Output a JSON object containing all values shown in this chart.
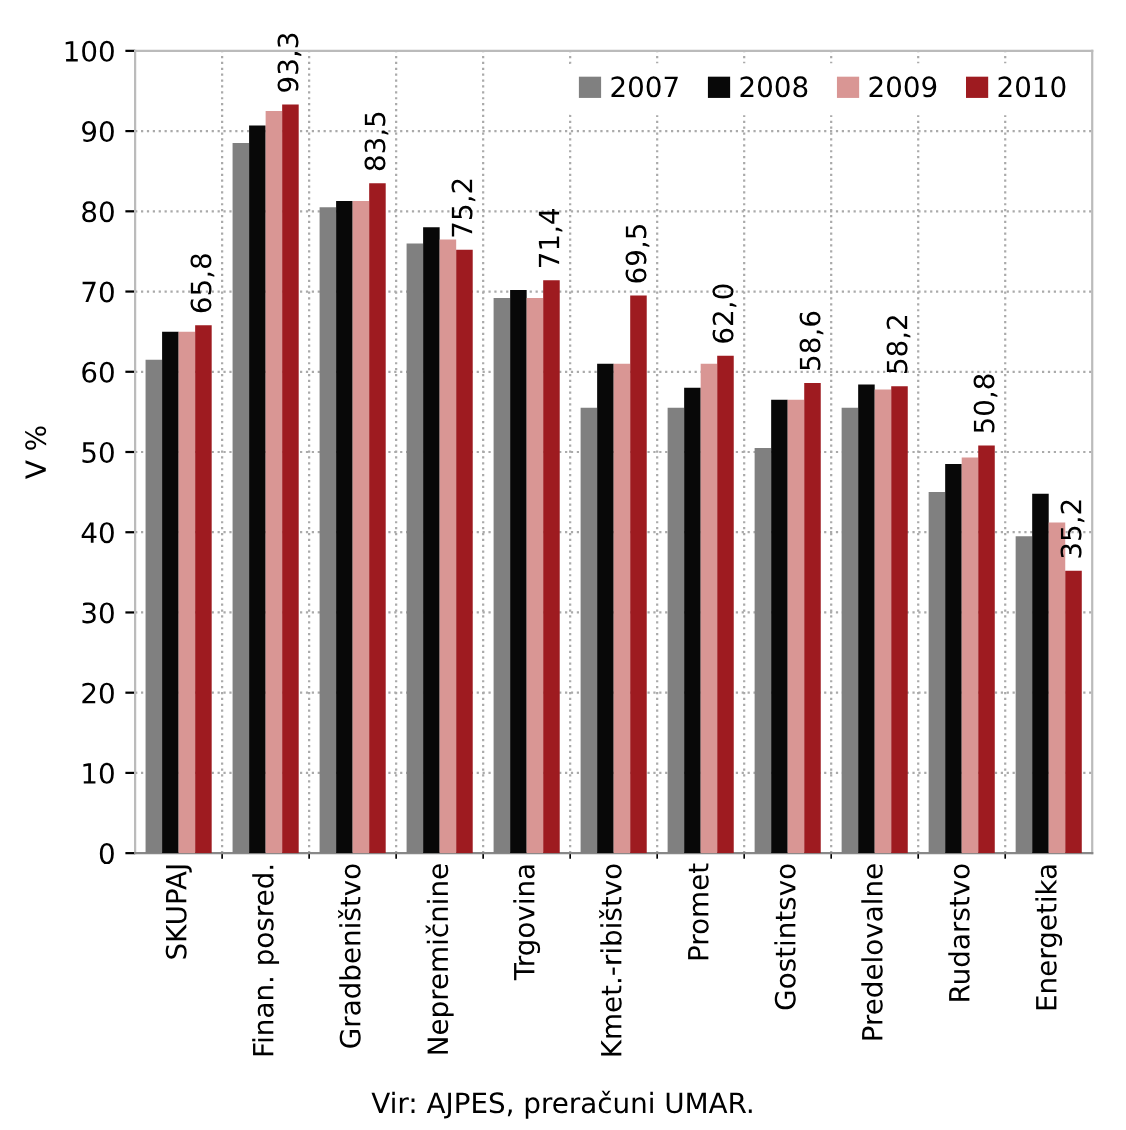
{
  "chart_data": {
    "type": "bar",
    "ylabel": "V %",
    "categories": [
      "SKUPAJ",
      "Finan. posred.",
      "Gradbeništvo",
      "Nepremičnine",
      "Trgovina",
      "Kmet.-ribištvo",
      "Promet",
      "Gostintsvo",
      "Predelovalne",
      "Rudarstvo",
      "Energetika"
    ],
    "series": [
      {
        "name": "2007",
        "color": "#808080",
        "values": [
          61.5,
          88.5,
          80.5,
          76.0,
          69.2,
          55.5,
          55.5,
          50.5,
          55.5,
          45.0,
          39.5
        ]
      },
      {
        "name": "2008",
        "color": "#080808",
        "values": [
          65.0,
          90.7,
          81.3,
          78.0,
          70.2,
          61.0,
          58.0,
          56.5,
          58.4,
          48.5,
          44.8
        ]
      },
      {
        "name": "2009",
        "color": "#d99694",
        "values": [
          65.0,
          92.5,
          81.3,
          76.5,
          69.2,
          61.0,
          61.0,
          56.5,
          57.8,
          49.3,
          41.2
        ]
      },
      {
        "name": "2010",
        "color": "#9e1b20",
        "values": [
          65.8,
          93.3,
          83.5,
          75.2,
          71.4,
          69.5,
          62.0,
          58.6,
          58.2,
          50.8,
          35.2
        ],
        "value_labels": [
          "65,8",
          "93,3",
          "83,5",
          "75,2",
          "71,4",
          "69,5",
          "62,0",
          "58,6",
          "58,2",
          "50,8",
          "35,2"
        ]
      }
    ],
    "ylim": [
      0,
      100
    ],
    "yticks": [
      0,
      10,
      20,
      30,
      40,
      50,
      60,
      70,
      80,
      90,
      100
    ],
    "grid": true,
    "legend": "top right",
    "annotations": [
      "Vir: AJPES, preračuni UMAR."
    ]
  }
}
